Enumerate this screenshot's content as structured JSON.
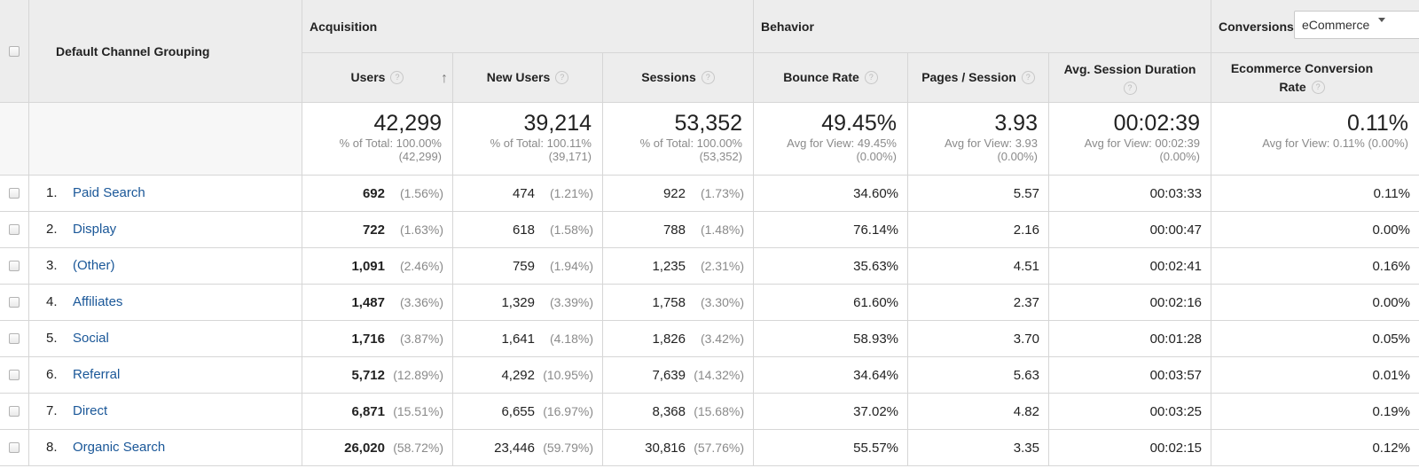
{
  "header": {
    "dimension_label": "Default Channel Grouping",
    "groups": {
      "acquisition": "Acquisition",
      "behavior": "Behavior",
      "conversions": "Conversions"
    },
    "conversions_select": "eCommerce",
    "columns": {
      "users": "Users",
      "new_users": "New Users",
      "sessions": "Sessions",
      "bounce_rate": "Bounce Rate",
      "pages_session": "Pages / Session",
      "avg_session_duration": "Avg. Session Duration",
      "ecommerce_conversion_rate": "Ecommerce Conversion Rate"
    },
    "help_glyph": "?",
    "sort_glyph": "↑"
  },
  "totals": {
    "users": {
      "value": "42,299",
      "line1": "% of Total: 100.00%",
      "line2": "(42,299)"
    },
    "new_users": {
      "value": "39,214",
      "line1": "% of Total: 100.11%",
      "line2": "(39,171)"
    },
    "sessions": {
      "value": "53,352",
      "line1": "% of Total: 100.00%",
      "line2": "(53,352)"
    },
    "bounce_rate": {
      "value": "49.45%",
      "line1": "Avg for View: 49.45%",
      "line2": "(0.00%)"
    },
    "pages_session": {
      "value": "3.93",
      "line1": "Avg for View: 3.93",
      "line2": "(0.00%)"
    },
    "avg_session_duration": {
      "value": "00:02:39",
      "line1": "Avg for View: 00:02:39",
      "line2": "(0.00%)"
    },
    "ecommerce_conversion_rate": {
      "value": "0.11%",
      "line1": "Avg for View: 0.11% (0.00%)"
    }
  },
  "rows": [
    {
      "rank": "1.",
      "channel": "Paid Search",
      "users": "692",
      "users_pct": "(1.56%)",
      "new_users": "474",
      "new_users_pct": "(1.21%)",
      "sessions": "922",
      "sessions_pct": "(1.73%)",
      "bounce_rate": "34.60%",
      "pages_session": "5.57",
      "avg_session_duration": "00:03:33",
      "conversion_rate": "0.11%"
    },
    {
      "rank": "2.",
      "channel": "Display",
      "users": "722",
      "users_pct": "(1.63%)",
      "new_users": "618",
      "new_users_pct": "(1.58%)",
      "sessions": "788",
      "sessions_pct": "(1.48%)",
      "bounce_rate": "76.14%",
      "pages_session": "2.16",
      "avg_session_duration": "00:00:47",
      "conversion_rate": "0.00%"
    },
    {
      "rank": "3.",
      "channel": "(Other)",
      "users": "1,091",
      "users_pct": "(2.46%)",
      "new_users": "759",
      "new_users_pct": "(1.94%)",
      "sessions": "1,235",
      "sessions_pct": "(2.31%)",
      "bounce_rate": "35.63%",
      "pages_session": "4.51",
      "avg_session_duration": "00:02:41",
      "conversion_rate": "0.16%"
    },
    {
      "rank": "4.",
      "channel": "Affiliates",
      "users": "1,487",
      "users_pct": "(3.36%)",
      "new_users": "1,329",
      "new_users_pct": "(3.39%)",
      "sessions": "1,758",
      "sessions_pct": "(3.30%)",
      "bounce_rate": "61.60%",
      "pages_session": "2.37",
      "avg_session_duration": "00:02:16",
      "conversion_rate": "0.00%"
    },
    {
      "rank": "5.",
      "channel": "Social",
      "users": "1,716",
      "users_pct": "(3.87%)",
      "new_users": "1,641",
      "new_users_pct": "(4.18%)",
      "sessions": "1,826",
      "sessions_pct": "(3.42%)",
      "bounce_rate": "58.93%",
      "pages_session": "3.70",
      "avg_session_duration": "00:01:28",
      "conversion_rate": "0.05%"
    },
    {
      "rank": "6.",
      "channel": "Referral",
      "users": "5,712",
      "users_pct": "(12.89%)",
      "new_users": "4,292",
      "new_users_pct": "(10.95%)",
      "sessions": "7,639",
      "sessions_pct": "(14.32%)",
      "bounce_rate": "34.64%",
      "pages_session": "5.63",
      "avg_session_duration": "00:03:57",
      "conversion_rate": "0.01%"
    },
    {
      "rank": "7.",
      "channel": "Direct",
      "users": "6,871",
      "users_pct": "(15.51%)",
      "new_users": "6,655",
      "new_users_pct": "(16.97%)",
      "sessions": "8,368",
      "sessions_pct": "(15.68%)",
      "bounce_rate": "37.02%",
      "pages_session": "4.82",
      "avg_session_duration": "00:03:25",
      "conversion_rate": "0.19%"
    },
    {
      "rank": "8.",
      "channel": "Organic Search",
      "users": "26,020",
      "users_pct": "(58.72%)",
      "new_users": "23,446",
      "new_users_pct": "(59.79%)",
      "sessions": "30,816",
      "sessions_pct": "(57.76%)",
      "bounce_rate": "55.57%",
      "pages_session": "3.35",
      "avg_session_duration": "00:02:15",
      "conversion_rate": "0.12%"
    }
  ]
}
